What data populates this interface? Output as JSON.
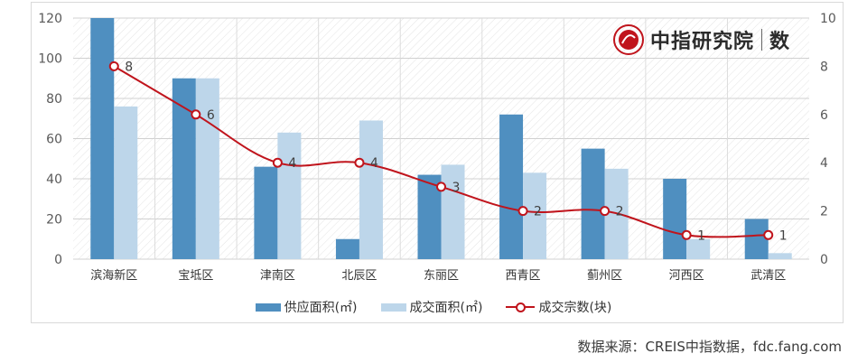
{
  "chart_data": {
    "type": "bar+line",
    "categories": [
      "滨海新区",
      "宝坻区",
      "津南区",
      "北辰区",
      "东丽区",
      "西青区",
      "蓟州区",
      "河西区",
      "武清区"
    ],
    "series": [
      {
        "name": "供应面积(㎡)",
        "type": "bar",
        "axis": "left",
        "color": "#4f8fc0",
        "values": [
          120,
          90,
          46,
          10,
          42,
          72,
          55,
          40,
          20
        ]
      },
      {
        "name": "成交面积(㎡)",
        "type": "bar",
        "axis": "left",
        "color": "#bdd6ea",
        "values": [
          76,
          90,
          63,
          69,
          47,
          43,
          45,
          10,
          3
        ]
      },
      {
        "name": "成交宗数(块)",
        "type": "line",
        "axis": "right",
        "color": "#c0141c",
        "values": [
          8,
          6,
          4,
          4,
          3,
          2,
          2,
          1,
          1
        ]
      }
    ],
    "y_left": {
      "min": 0,
      "max": 120,
      "ticks": [
        "0",
        "20",
        "40",
        "60",
        "80",
        "100",
        "120"
      ]
    },
    "y_right": {
      "min": 0,
      "max": 10,
      "ticks": [
        "0",
        "2",
        "4",
        "6",
        "8",
        "10"
      ]
    },
    "data_labels": [
      "8",
      "6",
      "4",
      "4",
      "3",
      "2",
      "2",
      "1",
      "1"
    ],
    "grid": true,
    "legend_position": "bottom"
  },
  "legend": {
    "supply": "供应面积(㎡)",
    "deal_area": "成交面积(㎡)",
    "deal_count": "成交宗数(块)"
  },
  "watermark": {
    "brand": "中指研究院",
    "suffix": "数"
  },
  "source": "数据来源：CREIS中指数据，fdc.fang.com",
  "colors": {
    "supply": "#4f8fc0",
    "deal_area": "#bdd6ea",
    "line": "#c0141c"
  }
}
